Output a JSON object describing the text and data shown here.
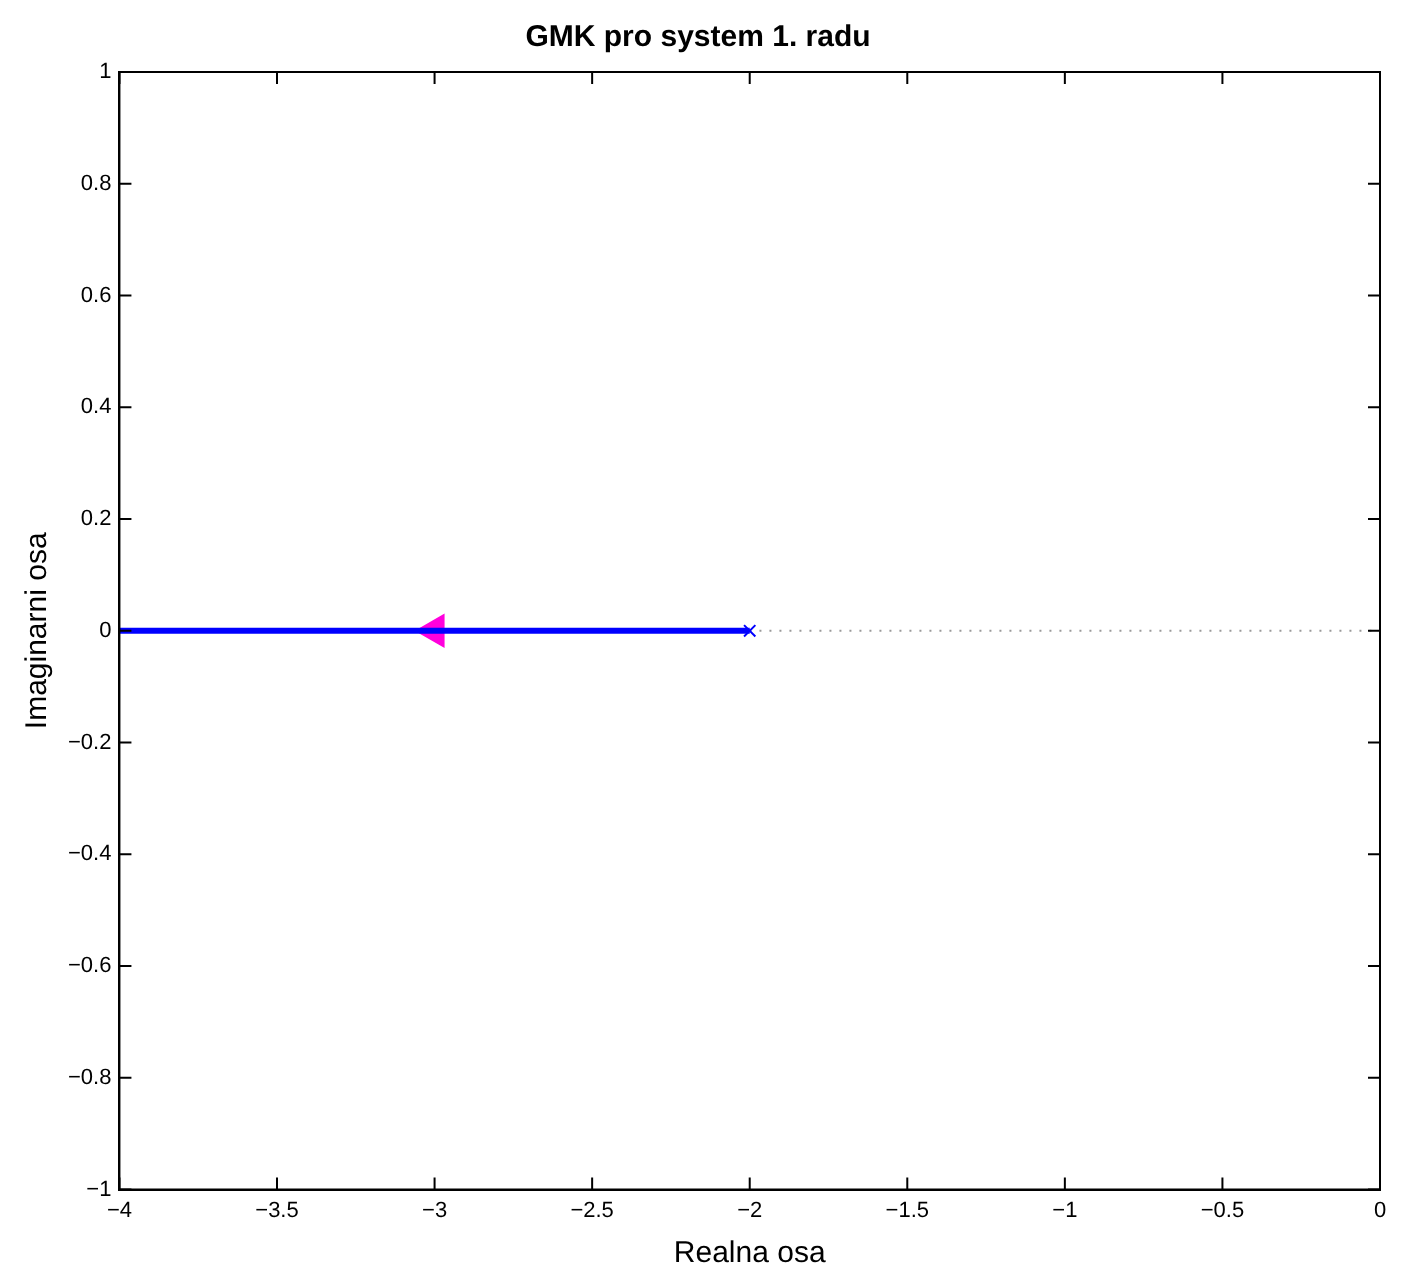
{
  "chart_data": {
    "type": "line",
    "title": "GMK pro system 1. radu",
    "xlabel": "Realna osa",
    "ylabel": "Imaginarni osa",
    "xlim": [
      -4,
      0
    ],
    "ylim": [
      -1,
      1
    ],
    "xticks": [
      {
        "value": -4,
        "label": "−4"
      },
      {
        "value": -3.5,
        "label": "−3.5"
      },
      {
        "value": -3,
        "label": "−3"
      },
      {
        "value": -2.5,
        "label": "−2.5"
      },
      {
        "value": -2,
        "label": "−2"
      },
      {
        "value": -1.5,
        "label": "−1.5"
      },
      {
        "value": -1,
        "label": "−1"
      },
      {
        "value": -0.5,
        "label": "−0.5"
      },
      0
    ],
    "yticks": [
      {
        "value": -1,
        "label": "−1"
      },
      {
        "value": -0.8,
        "label": "−0.8"
      },
      {
        "value": -0.6,
        "label": "−0.6"
      },
      {
        "value": -0.4,
        "label": "−0.4"
      },
      {
        "value": -0.2,
        "label": "−0.2"
      },
      0,
      0.2,
      0.4,
      0.6,
      0.8,
      1
    ],
    "grid": false,
    "legend": false,
    "ref_lines": [
      {
        "axis": "y",
        "value": 0,
        "color": "#999999",
        "line_style": "dotted"
      }
    ],
    "series": [
      {
        "color": "#0000ff",
        "x": [
          -4,
          -2
        ],
        "values": [
          0,
          0
        ],
        "marker": "none",
        "line_style": "solid"
      },
      {
        "type": "scatter",
        "color": "#0000ff",
        "x": [
          -2
        ],
        "values": [
          0
        ],
        "marker": "cross"
      },
      {
        "type": "scatter",
        "color": "#ff00dd",
        "x": [
          -3
        ],
        "values": [
          0
        ],
        "marker": "triangle"
      }
    ]
  }
}
